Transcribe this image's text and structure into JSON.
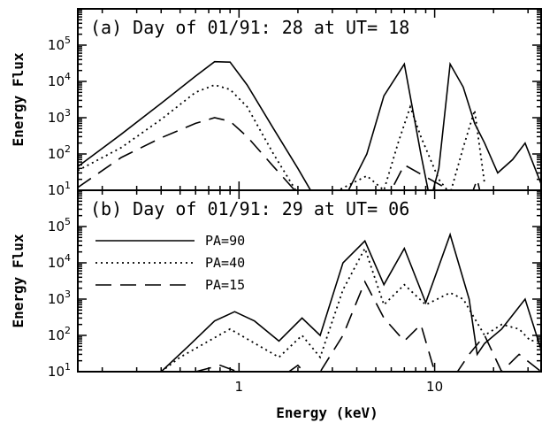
{
  "chart_data": [
    {
      "type": "line",
      "title": "(a) Day of 01/91: 28 at UT= 18",
      "xlabel": "",
      "ylabel": "Energy Flux",
      "xscale": "log",
      "yscale": "log",
      "xlim": [
        0.15,
        35
      ],
      "ylim": [
        10,
        1000000
      ],
      "x_ticks": [
        1,
        10
      ],
      "x_tick_labels": [
        "",
        ""
      ],
      "y_ticks": [
        10,
        100,
        1000,
        10000,
        100000
      ],
      "y_tick_labels": [
        {
          "base": "10",
          "exp": "1"
        },
        {
          "base": "10",
          "exp": "2"
        },
        {
          "base": "10",
          "exp": "3"
        },
        {
          "base": "10",
          "exp": "4"
        },
        {
          "base": "10",
          "exp": "5"
        }
      ],
      "series": [
        {
          "name": "PA=90",
          "style": "solid",
          "x": [
            0.15,
            0.25,
            0.4,
            0.6,
            0.75,
            0.9,
            1.1,
            1.5,
            2.0,
            2.5,
            3.4,
            4.5,
            5.5,
            7.0,
            8.5,
            9.5,
            10.5,
            12.0,
            14.0,
            16.0,
            18.0,
            21.0,
            25.0,
            29.0,
            35.0
          ],
          "y": [
            45,
            350,
            2500,
            14000,
            35000,
            34000,
            8000,
            500,
            40,
            3,
            5,
            100,
            4000,
            30000,
            100,
            3,
            40,
            30000,
            7000,
            700,
            200,
            30,
            70,
            200,
            15
          ]
        },
        {
          "name": "PA=40",
          "style": "dotted",
          "x": [
            0.15,
            0.25,
            0.4,
            0.6,
            0.75,
            0.9,
            1.1,
            1.5,
            2.0,
            2.5,
            4.5,
            5.5,
            6.5,
            7.5,
            8.5,
            10.5,
            12.0,
            14.0,
            16.0,
            18.0
          ],
          "y": [
            35,
            150,
            900,
            5000,
            8000,
            6000,
            2000,
            100,
            8,
            2,
            25,
            10,
            200,
            2000,
            300,
            20,
            8,
            150,
            1600,
            15
          ]
        },
        {
          "name": "PA=15",
          "style": "dashed",
          "x": [
            0.15,
            0.25,
            0.4,
            0.6,
            0.75,
            0.9,
            1.1,
            1.5,
            2.0,
            2.5,
            6.0,
            7.0,
            15.0,
            16.5,
            17.5
          ],
          "y": [
            12,
            80,
            280,
            700,
            1000,
            800,
            300,
            45,
            8,
            2,
            10,
            50,
            1,
            20,
            2
          ]
        }
      ]
    },
    {
      "type": "line",
      "title": "(b) Day of 01/91: 29 at UT= 06",
      "xlabel": "Energy (keV)",
      "ylabel": "Energy Flux",
      "xscale": "log",
      "yscale": "log",
      "xlim": [
        0.15,
        35
      ],
      "ylim": [
        10,
        1000000
      ],
      "x_ticks": [
        1,
        10
      ],
      "x_tick_labels": [
        "1",
        "10"
      ],
      "y_ticks": [
        10,
        100,
        1000,
        10000,
        100000
      ],
      "y_tick_labels": [
        {
          "base": "10",
          "exp": "1"
        },
        {
          "base": "10",
          "exp": "2"
        },
        {
          "base": "10",
          "exp": "3"
        },
        {
          "base": "10",
          "exp": "4"
        },
        {
          "base": "10",
          "exp": "5"
        }
      ],
      "legend": {
        "placement": "top-left",
        "entries": [
          {
            "label": "PA=90",
            "style": "solid"
          },
          {
            "label": "PA=40",
            "style": "dotted"
          },
          {
            "label": "PA=15",
            "style": "dashed"
          }
        ]
      },
      "series": [
        {
          "name": "PA=90",
          "style": "solid",
          "x": [
            0.4,
            0.55,
            0.75,
            0.95,
            1.2,
            1.6,
            2.1,
            2.6,
            3.4,
            4.4,
            5.5,
            7.0,
            9.0,
            12.0,
            15.0,
            16.5,
            18.0,
            22.0,
            29.0,
            35.0
          ],
          "y": [
            10,
            50,
            250,
            450,
            250,
            70,
            300,
            100,
            10000,
            40000,
            2500,
            25000,
            800,
            60000,
            1000,
            30,
            60,
            150,
            1000,
            40
          ]
        },
        {
          "name": "PA=40",
          "style": "dotted",
          "x": [
            0.4,
            0.5,
            0.7,
            0.9,
            1.1,
            1.6,
            2.1,
            2.6,
            3.4,
            4.4,
            5.5,
            7.0,
            9.0,
            12.0,
            14.0,
            18.0,
            22.0,
            27.0,
            31.0,
            35.0
          ],
          "y": [
            10,
            25,
            70,
            150,
            80,
            25,
            100,
            25,
            1800,
            25000,
            700,
            2500,
            700,
            1500,
            1000,
            100,
            200,
            150,
            70,
            80
          ]
        },
        {
          "name": "PA=15",
          "style": "dashed",
          "x": [
            0.6,
            0.8,
            1.1,
            1.5,
            2.0,
            2.4,
            3.4,
            4.4,
            5.5,
            7.0,
            8.5,
            10.0,
            12.0,
            15.0,
            18.0,
            22.0,
            27.0,
            35.0
          ],
          "y": [
            10,
            15,
            8,
            5,
            15,
            5,
            100,
            3000,
            300,
            70,
            200,
            10,
            3,
            30,
            100,
            10,
            30,
            10
          ]
        }
      ]
    }
  ]
}
